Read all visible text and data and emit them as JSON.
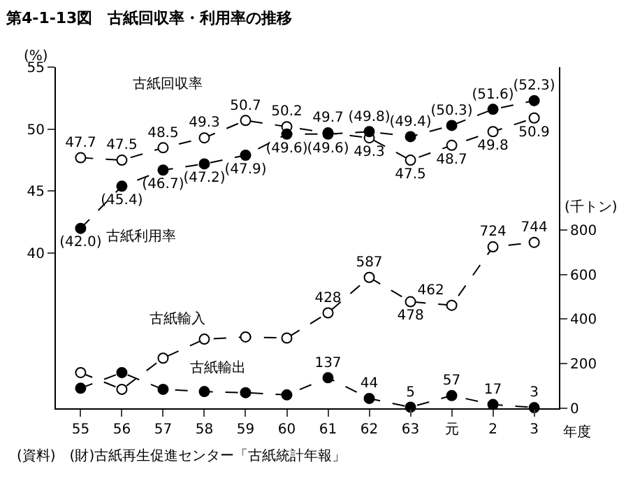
{
  "chart_data": {
    "type": "line",
    "title": "第4-1-13図　古紙回収率・利用率の推移",
    "ylabel": "(%)",
    "y2label": "(千トン)",
    "xlabel": "年度",
    "categories": [
      "55",
      "56",
      "57",
      "58",
      "59",
      "60",
      "61",
      "62",
      "63",
      "元",
      "2",
      "3"
    ],
    "series": [
      {
        "name": "古紙回収率",
        "color": "#000000",
        "colors": [
          "#ffffff",
          "#ffffff",
          "#ffffff",
          "#ffffff",
          "#ffffff",
          "#ffffff",
          "#ffffff",
          "#ffffff",
          "#ffffff",
          "#ffffff",
          "#ffffff",
          "#ffffff"
        ],
        "values": [
          47.7,
          47.5,
          48.5,
          49.3,
          50.7,
          50.2,
          49.7,
          49.3,
          47.5,
          48.7,
          49.8,
          50.9
        ],
        "value_labels": [
          "47.7",
          "47.5",
          "48.5",
          "49.3",
          "50.7",
          "50.2",
          "49.7",
          "49.3",
          "47.5",
          "48.7",
          "49.8",
          "50.9"
        ]
      },
      {
        "name": "古紙利用率",
        "color": "#000000",
        "values": [
          42.0,
          45.4,
          46.7,
          47.2,
          47.9,
          49.6,
          49.6,
          49.8,
          49.4,
          50.3,
          51.6,
          52.3
        ],
        "value_labels": [
          "(42.0)",
          "(45.4)",
          "(46.7)",
          "(47.2)",
          "(47.9)",
          "(49.6)",
          "(49.6)",
          "(49.8)",
          "(49.4)",
          "(50.3)",
          "(51.6)",
          "(52.3)"
        ]
      },
      {
        "name": "古紙輸入",
        "color": "#000000",
        "axis": "y2",
        "colors": [
          "#ffffff",
          "#ffffff",
          "#ffffff",
          "#ffffff",
          "#ffffff",
          "#ffffff",
          "#ffffff",
          "#ffffff",
          "#ffffff",
          "#ffffff",
          "#ffffff",
          "#ffffff"
        ],
        "values": [
          160,
          85,
          225,
          310,
          320,
          315,
          428,
          587,
          478,
          462,
          724,
          744
        ],
        "value_labels": [
          null,
          null,
          null,
          null,
          null,
          null,
          "428",
          "587",
          "478",
          "462",
          "724",
          "744"
        ]
      },
      {
        "name": "古紙輸出",
        "color": "#000000",
        "axis": "y2",
        "values": [
          90,
          160,
          85,
          75,
          70,
          60,
          137,
          44,
          5,
          57,
          17,
          3
        ],
        "value_labels": [
          null,
          null,
          null,
          null,
          null,
          null,
          "137",
          "44",
          "5",
          "57",
          "17",
          "3"
        ]
      }
    ],
    "ylim": [
      27.5,
      55
    ],
    "yticks": [
      40,
      45,
      50,
      55
    ],
    "y2lim": [
      0,
      1530
    ],
    "y2ticks": [
      0,
      200,
      400,
      600,
      800
    ],
    "marker": "circle",
    "line_style": "dashed",
    "annotations": [
      "(資料)　(財)古紙再生促進センター「古紙統計年報」"
    ]
  }
}
